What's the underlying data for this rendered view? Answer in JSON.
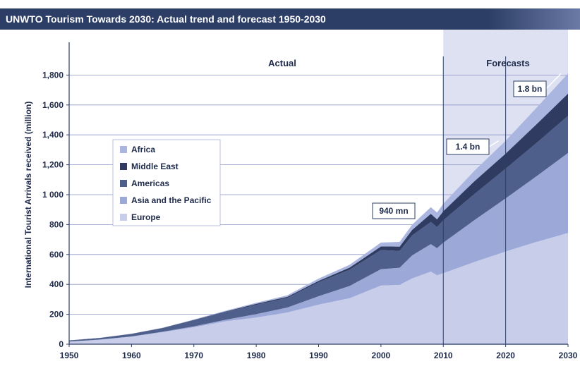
{
  "header": {
    "title": "UNWTO Tourism Towards 2030: Actual trend and forecast 1950-2030"
  },
  "chart_data": {
    "type": "area",
    "title": "UNWTO Tourism Towards 2030: Actual trend and forecast 1950-2030",
    "xlabel": "",
    "ylabel": "International Tourist Arrivals received (million)",
    "xlim": [
      1950,
      2030
    ],
    "ylim": [
      0,
      1900
    ],
    "xticks": [
      "1950",
      "1960",
      "1970",
      "1980",
      "1990",
      "2000",
      "2010",
      "2020",
      "2030"
    ],
    "yticks": [
      "0",
      "200",
      "400",
      "600",
      "800",
      "1 000",
      "1,200",
      "1,400",
      "1,600",
      "1,800"
    ],
    "x": [
      1950,
      1955,
      1960,
      1965,
      1970,
      1975,
      1980,
      1985,
      1990,
      1995,
      2000,
      2003,
      2005,
      2008,
      2009,
      2010,
      2015,
      2020,
      2025,
      2030
    ],
    "stacked": true,
    "series": [
      {
        "name": "Europe",
        "values": [
          17,
          30,
          50,
          80,
          113,
          153,
          178,
          212,
          265,
          308,
          392,
          397,
          440,
          485,
          461,
          475,
          550,
          620,
          685,
          744
        ]
      },
      {
        "name": "Asia and the Pacific",
        "values": [
          0.5,
          1,
          2,
          4,
          6,
          10,
          23,
          33,
          56,
          82,
          110,
          114,
          154,
          184,
          181,
          204,
          280,
          355,
          440,
          535
        ]
      },
      {
        "name": "Americas",
        "values": [
          7.5,
          11,
          17,
          24,
          42,
          52,
          62,
          65,
          93,
          109,
          128,
          113,
          133,
          148,
          141,
          150,
          175,
          199,
          223,
          248
        ]
      },
      {
        "name": "Middle East",
        "values": [
          0.2,
          0.4,
          0.6,
          1,
          2,
          3,
          7,
          7.5,
          9.6,
          13.7,
          24,
          29,
          37,
          55,
          52,
          60,
          85,
          101,
          125,
          149
        ]
      },
      {
        "name": "Africa",
        "values": [
          0.5,
          0.8,
          0.8,
          1,
          2,
          5,
          7,
          10,
          15,
          19,
          26,
          31,
          35,
          44,
          46,
          50,
          70,
          85,
          110,
          134
        ]
      }
    ],
    "grid": true,
    "legend_position": "left",
    "regions": [
      {
        "label": "Actual",
        "range": [
          1950,
          2010
        ]
      },
      {
        "label": "Forecasts",
        "range": [
          2010,
          2030
        ]
      }
    ],
    "annotations": [
      {
        "text": "940 mn",
        "x": 2010,
        "y": 940
      },
      {
        "text": "1.4 bn",
        "x": 2020,
        "y": 1360
      },
      {
        "text": "1.8 bn",
        "x": 2030,
        "y": 1810
      }
    ],
    "colors": {
      "Europe": "#c8cde9",
      "Asia and the Pacific": "#9ca8d8",
      "Americas": "#4f5f8c",
      "Middle East": "#2f3b60",
      "Africa": "#aab5e0",
      "forecast_band": "#dde1f1",
      "grid": "#8c96c8",
      "axis": "#2c3e66",
      "text": "#1e2a4a"
    }
  }
}
